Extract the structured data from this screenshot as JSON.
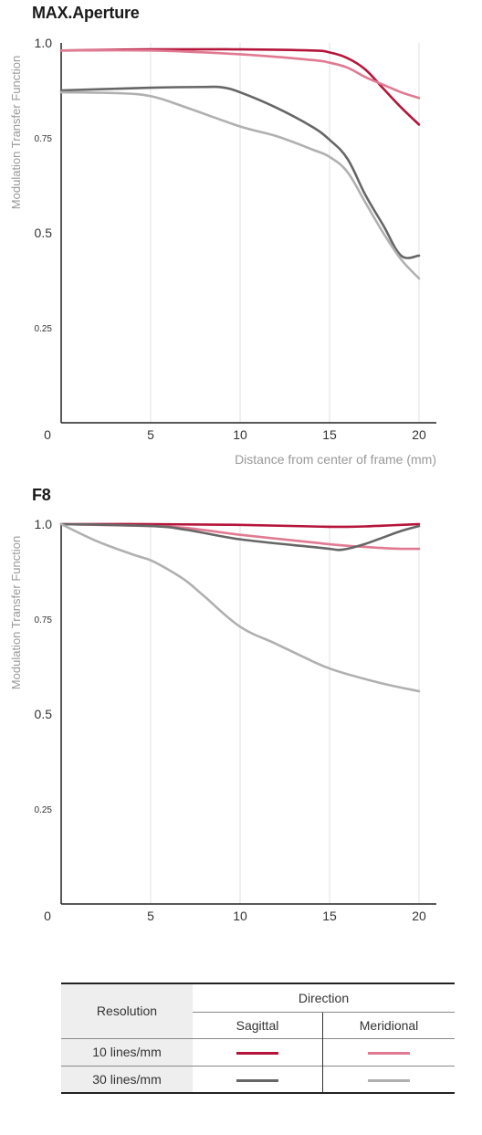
{
  "chart_data": [
    {
      "type": "line",
      "title": "MAX.Aperture",
      "xlabel": "Distance from center of frame (mm)",
      "ylabel": "Modulation Transfer Function",
      "xlim": [
        0,
        21
      ],
      "ylim": [
        0,
        1.0
      ],
      "x_ticks": [
        "0",
        "5",
        "10",
        "15",
        "20"
      ],
      "y_ticks": [
        "1.0",
        "0.75",
        "0.5",
        "0.25"
      ],
      "grid": "vertical",
      "series": [
        {
          "color": "#b5153a",
          "x": [
            0,
            5,
            10,
            14,
            15,
            16,
            17,
            18,
            19,
            20
          ],
          "y": [
            0.98,
            0.983,
            0.983,
            0.98,
            0.975,
            0.96,
            0.93,
            0.88,
            0.83,
            0.785
          ]
        },
        {
          "color": "#e07a92",
          "x": [
            0,
            5,
            10,
            14,
            15,
            16,
            17,
            18,
            19,
            20
          ],
          "y": [
            0.98,
            0.98,
            0.97,
            0.955,
            0.948,
            0.935,
            0.91,
            0.89,
            0.87,
            0.855
          ]
        },
        {
          "color": "#666666",
          "x": [
            0,
            5,
            8,
            9,
            10,
            12,
            14,
            15,
            16,
            17,
            18,
            19,
            20
          ],
          "y": [
            0.875,
            0.882,
            0.884,
            0.883,
            0.87,
            0.83,
            0.78,
            0.745,
            0.695,
            0.6,
            0.52,
            0.44,
            0.44
          ]
        },
        {
          "color": "#b0b0b0",
          "x": [
            0,
            3,
            5,
            7,
            10,
            12,
            14,
            15,
            16,
            17,
            18,
            19,
            20
          ],
          "y": [
            0.87,
            0.868,
            0.86,
            0.83,
            0.78,
            0.755,
            0.72,
            0.7,
            0.66,
            0.58,
            0.5,
            0.43,
            0.38
          ]
        }
      ]
    },
    {
      "type": "line",
      "title": "F8",
      "xlabel": "",
      "ylabel": "Modulation Transfer Function",
      "xlim": [
        0,
        21
      ],
      "ylim": [
        0,
        1.0
      ],
      "x_ticks": [
        "0",
        "5",
        "10",
        "15",
        "20"
      ],
      "y_ticks": [
        "1.0",
        "0.75",
        "0.5",
        "0.25"
      ],
      "grid": "vertical",
      "series": [
        {
          "color": "#b5153a",
          "x": [
            0,
            5,
            10,
            14,
            15,
            16,
            17,
            18,
            19,
            20
          ],
          "y": [
            1.0,
            1.0,
            0.998,
            0.994,
            0.993,
            0.993,
            0.994,
            0.996,
            0.998,
            1.0
          ]
        },
        {
          "color": "#e07a92",
          "x": [
            0,
            5,
            7,
            10,
            14,
            15,
            16,
            17,
            18,
            19,
            20
          ],
          "y": [
            1.0,
            0.995,
            0.99,
            0.972,
            0.952,
            0.947,
            0.943,
            0.94,
            0.937,
            0.935,
            0.935
          ]
        },
        {
          "color": "#666666",
          "x": [
            0,
            5,
            7,
            10,
            14,
            15,
            15.5,
            16,
            17,
            18,
            19,
            20
          ],
          "y": [
            1.0,
            0.995,
            0.985,
            0.96,
            0.94,
            0.935,
            0.932,
            0.935,
            0.948,
            0.965,
            0.982,
            0.995
          ]
        },
        {
          "color": "#b0b0b0",
          "x": [
            0,
            2,
            4,
            5,
            6,
            7,
            8,
            10,
            12,
            14,
            15,
            16,
            18,
            20
          ],
          "y": [
            1.0,
            0.955,
            0.92,
            0.905,
            0.88,
            0.85,
            0.81,
            0.73,
            0.685,
            0.64,
            0.62,
            0.605,
            0.58,
            0.56
          ]
        }
      ]
    }
  ],
  "legend": {
    "resolution_header": "Resolution",
    "direction_header": "Direction",
    "sagittal_label": "Sagittal",
    "meridional_label": "Meridional",
    "rows": [
      {
        "label": "10 lines/mm",
        "sagittal_color": "#b5153a",
        "meridional_color": "#e07a92"
      },
      {
        "label": "30 lines/mm",
        "sagittal_color": "#666666",
        "meridional_color": "#b0b0b0"
      }
    ]
  }
}
